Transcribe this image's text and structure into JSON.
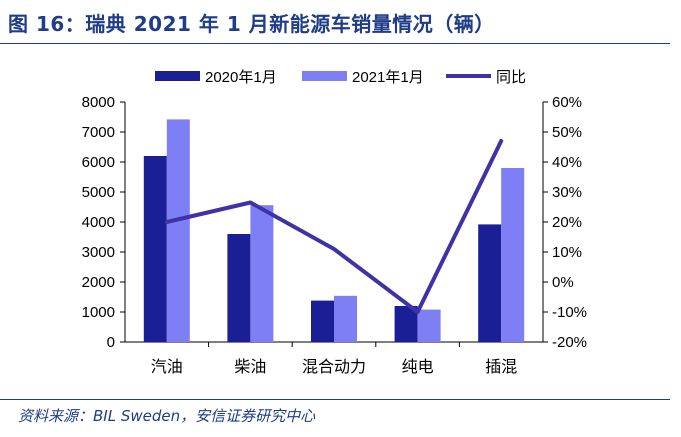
{
  "title": "图 16：瑞典 2021 年 1 月新能源车销量情况（辆）",
  "source": "资料来源：BIL Sweden，安信证券研究中心",
  "colors": {
    "series2020": "#1A1F96",
    "series2021": "#7F7FF5",
    "yoy": "#3E33A6",
    "text_accent": "#1F3C88"
  },
  "chart_data": {
    "type": "bar",
    "categories": [
      "汽油",
      "柴油",
      "混合动力",
      "纯电",
      "插混"
    ],
    "series": [
      {
        "name": "2020年1月",
        "kind": "bar",
        "axis": "left",
        "values": [
          6200,
          3600,
          1380,
          1200,
          3920
        ]
      },
      {
        "name": "2021年1月",
        "kind": "bar",
        "axis": "left",
        "values": [
          7420,
          4560,
          1540,
          1080,
          5800
        ]
      },
      {
        "name": "同比",
        "kind": "line",
        "axis": "right",
        "values": [
          20,
          26.5,
          11,
          -10,
          47
        ]
      }
    ],
    "ylim": [
      0,
      8000
    ],
    "yticks": [
      "0",
      "1000",
      "2000",
      "3000",
      "4000",
      "5000",
      "6000",
      "7000",
      "8000"
    ],
    "y2lim": [
      -20,
      60
    ],
    "y2ticks": [
      "-20%",
      "-10%",
      "0%",
      "10%",
      "20%",
      "30%",
      "40%",
      "50%",
      "60%"
    ],
    "legend_position": "top-center",
    "grid": false
  }
}
